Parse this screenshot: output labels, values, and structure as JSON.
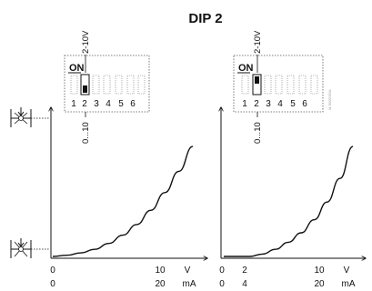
{
  "title": "DIP 2",
  "watermark": "M.S09G9OA",
  "colors": {
    "ink": "#111111",
    "grid": "#555555"
  },
  "panels": [
    {
      "dip": {
        "on_label": "ON",
        "voltage_label": "2-10V",
        "numbers": [
          "1",
          "2",
          "3",
          "4",
          "5",
          "6"
        ],
        "range_label": "0...10",
        "active_switch": 2,
        "active_state": "off"
      },
      "icons": [
        "damper-open-icon",
        "damper-closed-icon"
      ],
      "axis": {
        "x_unit_v": "V",
        "x_unit_ma": "mA",
        "v_ticks": [
          "0",
          "10"
        ],
        "ma_ticks": [
          "0",
          "20"
        ]
      },
      "chart_data": {
        "type": "line",
        "xlabel": "V",
        "xlim": [
          0,
          10
        ],
        "ylim": [
          0,
          1
        ],
        "x": [
          0,
          1,
          2,
          3,
          4,
          5,
          6,
          7,
          8,
          9,
          10
        ],
        "y": [
          0.0,
          0.01,
          0.03,
          0.06,
          0.11,
          0.18,
          0.27,
          0.39,
          0.54,
          0.72,
          0.93
        ]
      }
    },
    {
      "dip": {
        "on_label": "ON",
        "voltage_label": "2-10V",
        "numbers": [
          "1",
          "2",
          "3",
          "4",
          "5",
          "6"
        ],
        "range_label": "0...10",
        "active_switch": 2,
        "active_state": "on"
      },
      "icons": [],
      "axis": {
        "x_unit_v": "V",
        "x_unit_ma": "mA",
        "v_ticks": [
          "0",
          "2",
          "10"
        ],
        "ma_ticks": [
          "0",
          "4",
          "20"
        ]
      },
      "chart_data": {
        "type": "line",
        "xlabel": "V",
        "xlim": [
          0,
          10
        ],
        "ylim": [
          0,
          1
        ],
        "x": [
          0,
          2,
          3,
          4,
          5,
          6,
          7,
          8,
          9,
          10
        ],
        "y": [
          0.0,
          0.0,
          0.02,
          0.06,
          0.12,
          0.2,
          0.31,
          0.46,
          0.66,
          0.93
        ]
      }
    }
  ]
}
